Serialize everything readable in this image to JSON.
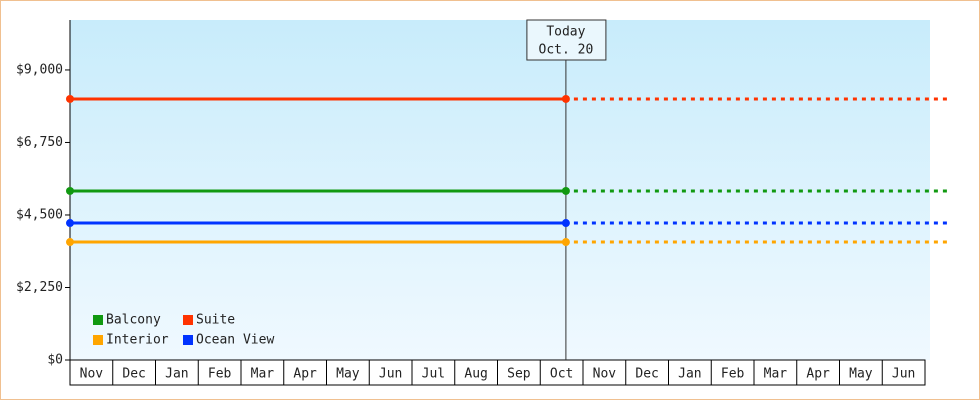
{
  "chart_data": {
    "type": "line",
    "categories": [
      "Nov",
      "Dec",
      "Jan",
      "Feb",
      "Mar",
      "Apr",
      "May",
      "Jun",
      "Jul",
      "Aug",
      "Sep",
      "Oct",
      "Nov",
      "Dec",
      "Jan",
      "Feb",
      "Mar",
      "Apr",
      "May",
      "Jun"
    ],
    "series": [
      {
        "name": "Balcony",
        "color": "#119911",
        "value": 5245
      },
      {
        "name": "Suite",
        "color": "#ff3300",
        "value": 8100
      },
      {
        "name": "Interior",
        "color": "#ffa500",
        "value": 3660
      },
      {
        "name": "Ocean View",
        "color": "#0033ff",
        "value": 4250
      }
    ],
    "ylim": [
      0,
      10550
    ],
    "yticks": [
      {
        "value": 0,
        "label": "$0"
      },
      {
        "value": 2250,
        "label": "$2,250"
      },
      {
        "value": 4500,
        "label": "$4,500"
      },
      {
        "value": 6750,
        "label": "$6,750"
      },
      {
        "value": 9000,
        "label": "$9,000"
      }
    ],
    "annotation": {
      "lines": [
        "Today",
        "Oct. 20"
      ],
      "x": 11.6
    }
  }
}
